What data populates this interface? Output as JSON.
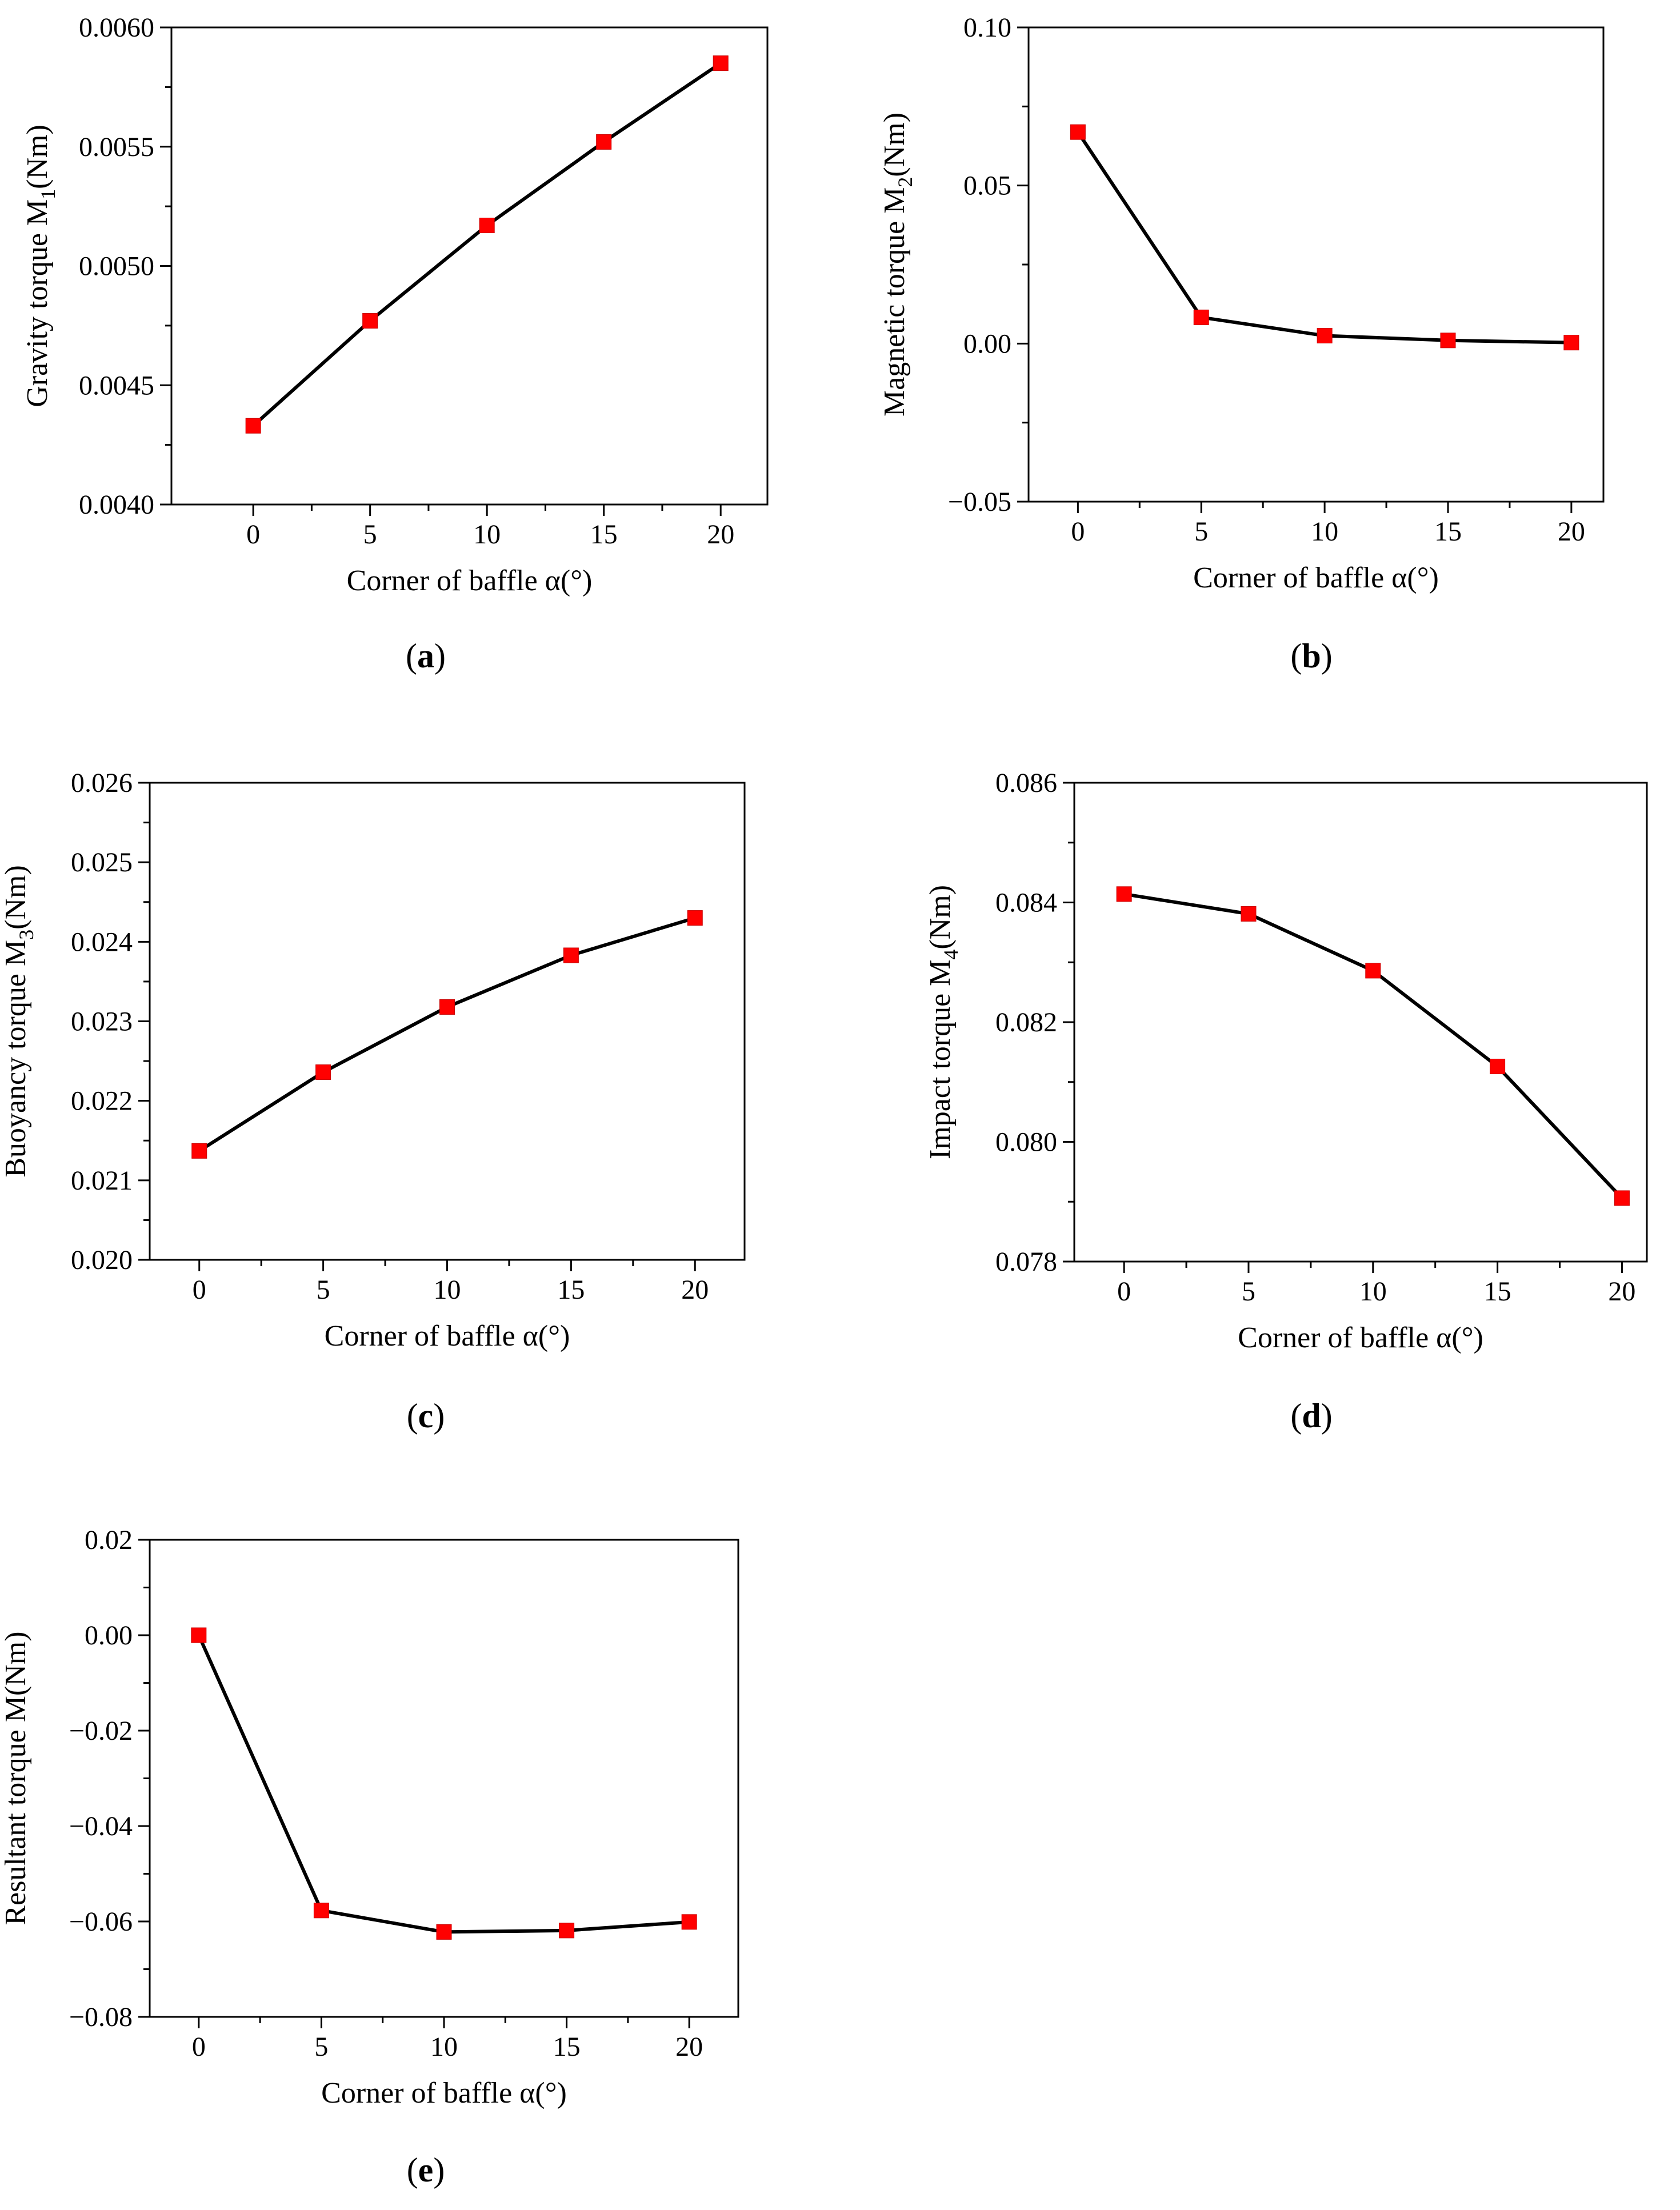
{
  "chart_data": [
    {
      "id": "a",
      "type": "line",
      "caption": "(a)",
      "caption_letter": "a",
      "x": [
        0,
        5,
        10,
        15,
        20
      ],
      "xticks": [
        "0",
        "5",
        "10",
        "15",
        "20"
      ],
      "xlim": [
        -3.5,
        22
      ],
      "ylim": [
        0.004,
        0.006
      ],
      "yticks": [
        0.004,
        0.0045,
        0.005,
        0.0055,
        0.006
      ],
      "yticklabels": [
        "0.0040",
        "0.0045",
        "0.0050",
        "0.0055",
        "0.0060"
      ],
      "series": [
        {
          "name": "M1",
          "values": [
            0.00433,
            0.00477,
            0.00517,
            0.00552,
            0.00585
          ]
        }
      ],
      "xlabel": "Corner of baffle α(°)",
      "ylabel": {
        "pre": "Gravity torque M",
        "sub": "1",
        "post": "(Nm)"
      }
    },
    {
      "id": "b",
      "type": "line",
      "caption": "(b)",
      "caption_letter": "b",
      "x": [
        0,
        5,
        10,
        15,
        20
      ],
      "xticks": [
        "0",
        "5",
        "10",
        "15",
        "20"
      ],
      "xlim": [
        -2,
        21.3
      ],
      "ylim": [
        -0.05,
        0.1
      ],
      "yticks": [
        -0.05,
        0,
        0.05,
        0.1
      ],
      "yticklabels": [
        "−0.05",
        "0.00",
        "0.05",
        "0.10"
      ],
      "series": [
        {
          "name": "M2",
          "values": [
            0.0669,
            0.0083,
            0.0025,
            0.001,
            0.0003
          ]
        }
      ],
      "xlabel": "Corner of baffle  α(°)",
      "ylabel": {
        "pre": "Magnetic torque  M",
        "sub": "2",
        "post": "(Nm)"
      }
    },
    {
      "id": "c",
      "type": "line",
      "caption": "(c)",
      "caption_letter": "c",
      "x": [
        0,
        5,
        10,
        15,
        20
      ],
      "xticks": [
        "0",
        "5",
        "10",
        "15",
        "20"
      ],
      "xlim": [
        -2,
        22
      ],
      "ylim": [
        0.02,
        0.026
      ],
      "yticks": [
        0.02,
        0.021,
        0.022,
        0.023,
        0.024,
        0.025,
        0.026
      ],
      "yticklabels": [
        "0.020",
        "0.021",
        "0.022",
        "0.023",
        "0.024",
        "0.025",
        "0.026"
      ],
      "series": [
        {
          "name": "M3",
          "values": [
            0.02137,
            0.02236,
            0.02318,
            0.02383,
            0.0243
          ]
        }
      ],
      "xlabel": "Corner of baffle  α(°)",
      "ylabel": {
        "pre": "Buoyancy torque  M",
        "sub": "3",
        "post": "(Nm)"
      }
    },
    {
      "id": "d",
      "type": "line",
      "caption": "(d)",
      "caption_letter": "d",
      "x": [
        0,
        5,
        10,
        15,
        20
      ],
      "xticks": [
        "0",
        "5",
        "10",
        "15",
        "20"
      ],
      "xlim": [
        -2,
        21
      ],
      "ylim": [
        0.078,
        0.086
      ],
      "yticks": [
        0.078,
        0.08,
        0.082,
        0.084,
        0.086
      ],
      "yticklabels": [
        "0.078",
        "0.080",
        "0.082",
        "0.084",
        "0.086"
      ],
      "series": [
        {
          "name": "M4",
          "values": [
            0.08414,
            0.08381,
            0.08286,
            0.08126,
            0.07906
          ]
        }
      ],
      "xlabel": "Corner of baffle α(°)",
      "ylabel": {
        "pre": "Impact torque M",
        "sub": "4",
        "post": "(Nm)"
      }
    },
    {
      "id": "e",
      "type": "line",
      "caption": "(e)",
      "caption_letter": "e",
      "x": [
        0,
        5,
        10,
        15,
        20
      ],
      "xticks": [
        "0",
        "5",
        "10",
        "15",
        "20"
      ],
      "xlim": [
        -2,
        22
      ],
      "ylim": [
        -0.08,
        0.02
      ],
      "yticks": [
        -0.08,
        -0.06,
        -0.04,
        -0.02,
        0,
        0.02
      ],
      "yticklabels": [
        "−0.08",
        "−0.06",
        "−0.04",
        "−0.02",
        "0.00",
        "0.02"
      ],
      "series": [
        {
          "name": "M",
          "values": [
            0.0,
            -0.0577,
            -0.0622,
            -0.0619,
            -0.0601
          ]
        }
      ],
      "xlabel": "Corner of baffle α(°)",
      "ylabel": {
        "pre": "Resultant torque M(Nm)",
        "sub": "",
        "post": ""
      }
    }
  ],
  "colors": {
    "line": "#000000",
    "marker": "#ff0000",
    "axis": "#000000"
  }
}
